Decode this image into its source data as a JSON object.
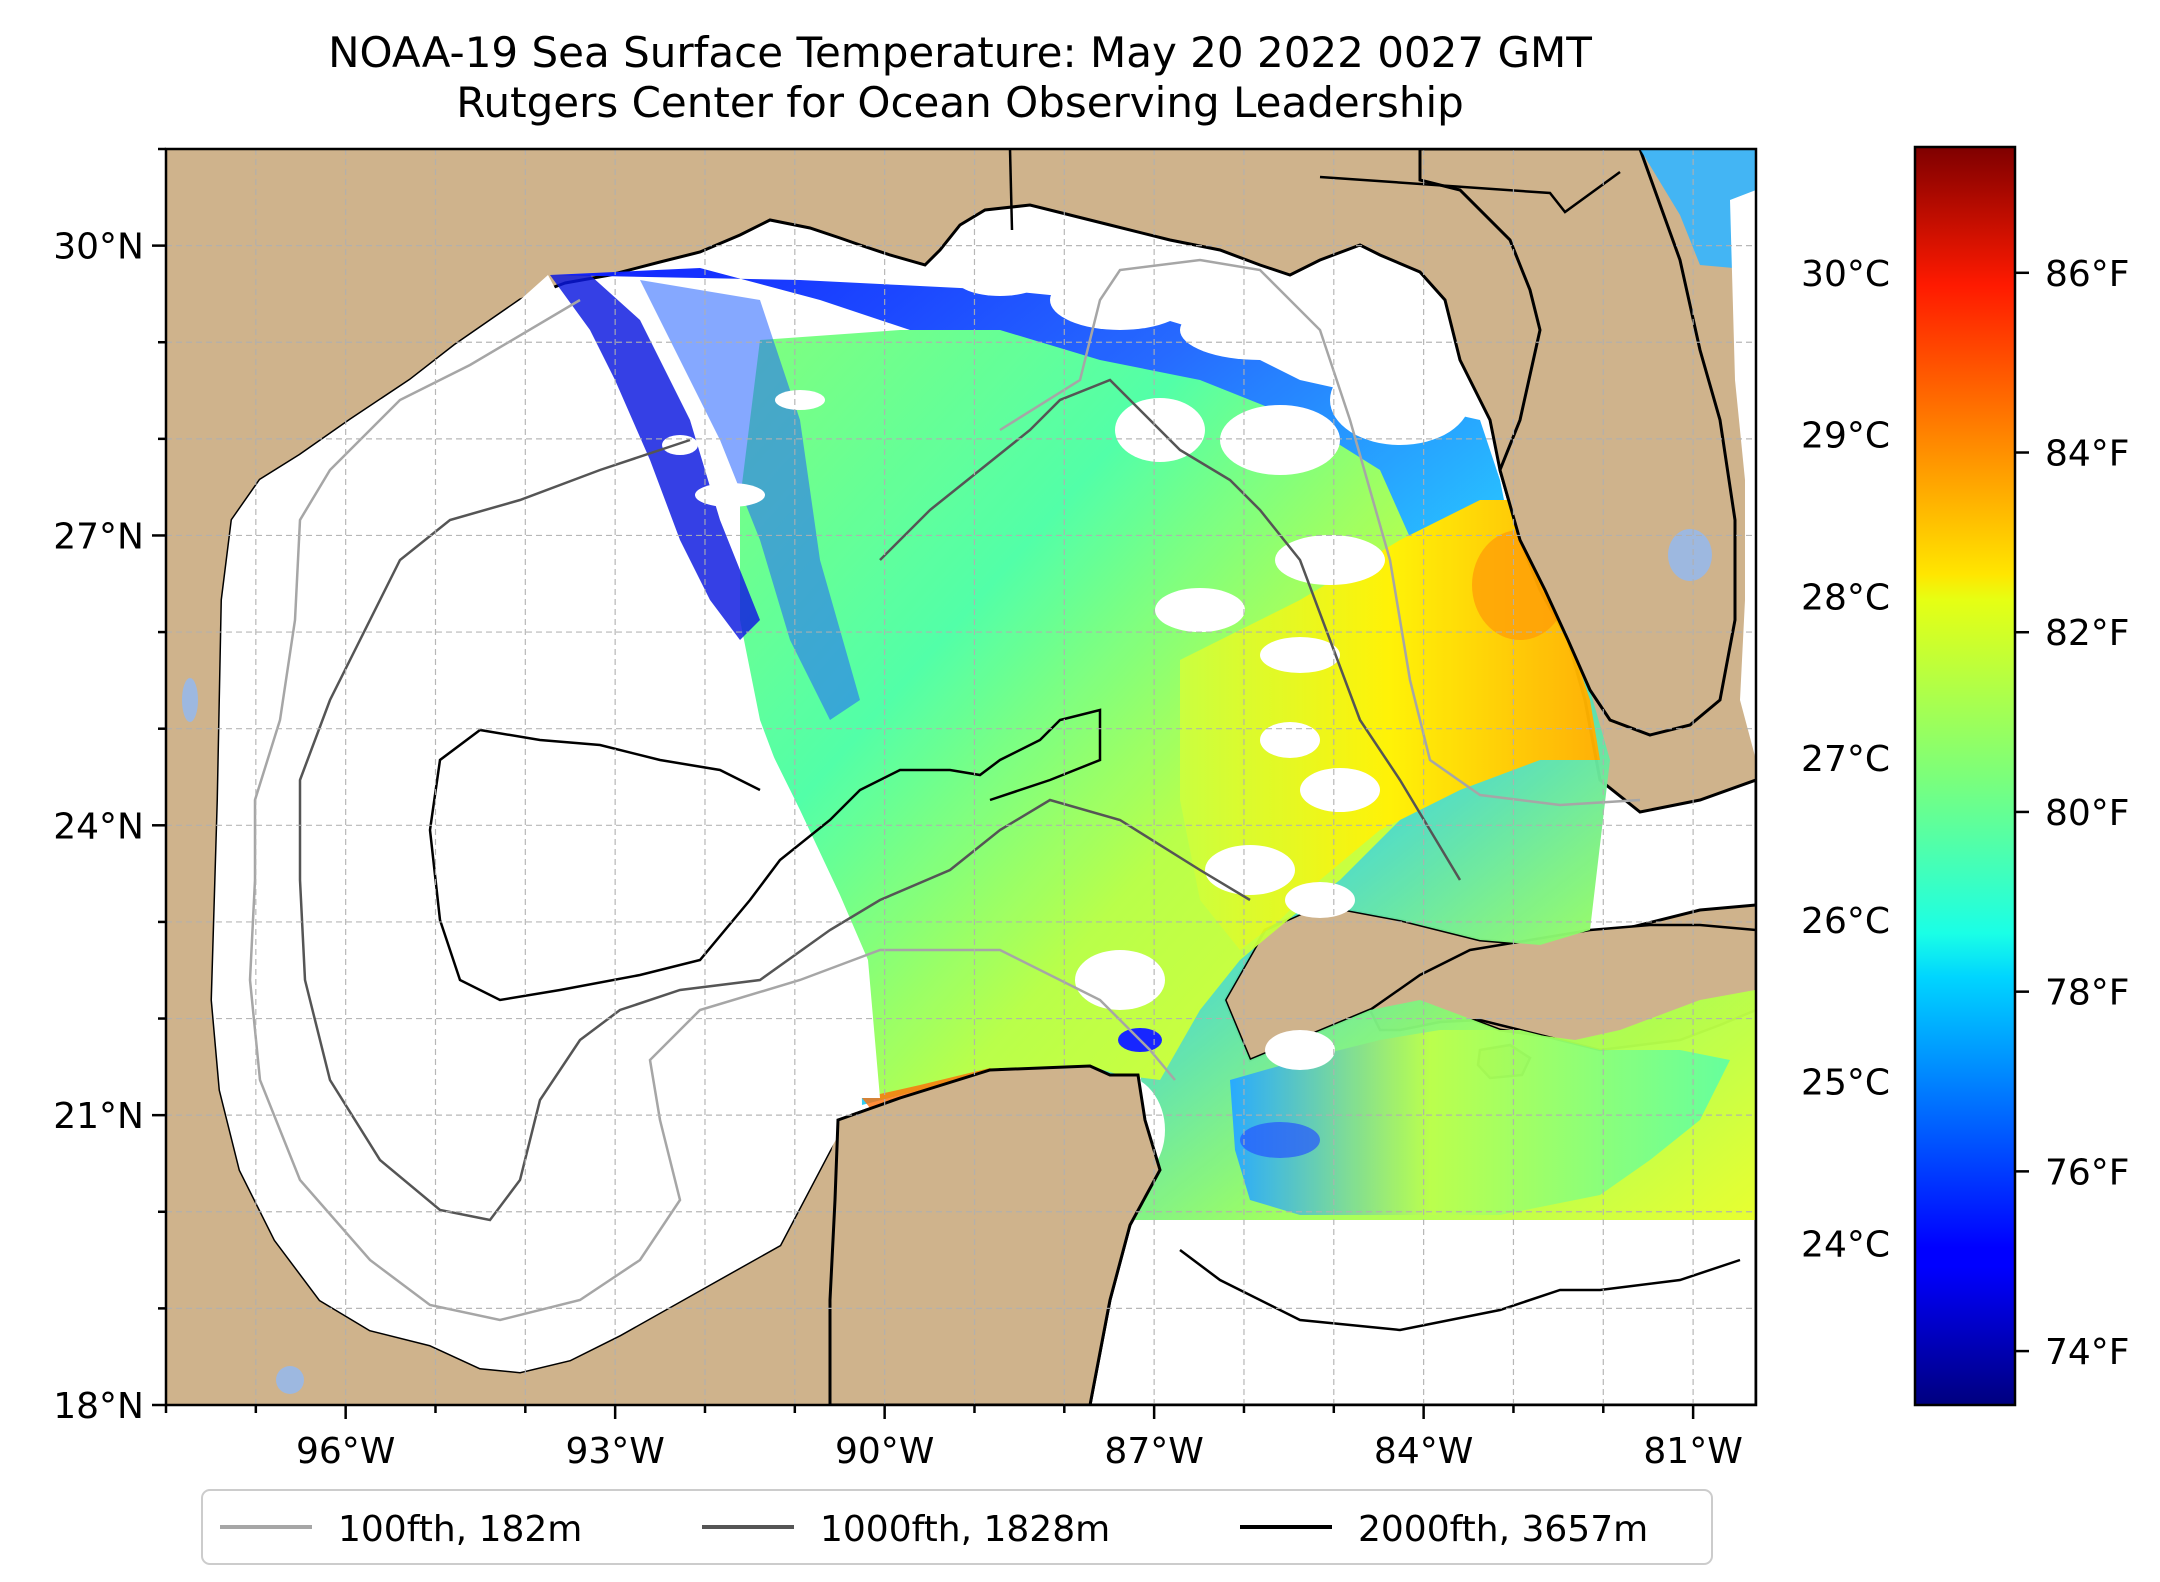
{
  "title": {
    "line1": "NOAA-19 Sea Surface Temperature: May 20 2022 0027 GMT",
    "line2": "Rutgers Center for Ocean Observing Leadership"
  },
  "map": {
    "lon_range": [
      -98.0,
      -80.3
    ],
    "lat_range": [
      18.0,
      31.0
    ],
    "lon_ticks": [
      {
        "value": -96,
        "label": "96°W"
      },
      {
        "value": -93,
        "label": "93°W"
      },
      {
        "value": -90,
        "label": "90°W"
      },
      {
        "value": -87,
        "label": "87°W"
      },
      {
        "value": -84,
        "label": "84°W"
      },
      {
        "value": -81,
        "label": "81°W"
      }
    ],
    "lat_ticks": [
      {
        "value": 30,
        "label": "30°N"
      },
      {
        "value": 27,
        "label": "27°N"
      },
      {
        "value": 24,
        "label": "24°N"
      },
      {
        "value": 21,
        "label": "21°N"
      },
      {
        "value": 18,
        "label": "18°N"
      }
    ],
    "grid": "dashed",
    "colors": {
      "land": "#cfb38c",
      "ocean_no_data": "#ffffff",
      "lakes": "#9db8e0",
      "coastline": "#000000"
    }
  },
  "colorbar": {
    "colormap": "jet",
    "range_f": [
      73.4,
      87.4
    ],
    "celsius_ticks": [
      {
        "value_c": 30,
        "label": "30°C"
      },
      {
        "value_c": 29,
        "label": "29°C"
      },
      {
        "value_c": 28,
        "label": "28°C"
      },
      {
        "value_c": 27,
        "label": "27°C"
      },
      {
        "value_c": 26,
        "label": "26°C"
      },
      {
        "value_c": 25,
        "label": "25°C"
      },
      {
        "value_c": 24,
        "label": "24°C"
      }
    ],
    "fahrenheit_ticks": [
      {
        "value_f": 86,
        "label": "86°F"
      },
      {
        "value_f": 84,
        "label": "84°F"
      },
      {
        "value_f": 82,
        "label": "82°F"
      },
      {
        "value_f": 80,
        "label": "80°F"
      },
      {
        "value_f": 78,
        "label": "78°F"
      },
      {
        "value_f": 76,
        "label": "76°F"
      },
      {
        "value_f": 74,
        "label": "74°F"
      }
    ]
  },
  "legend": {
    "placement": "bottom-center",
    "entries": [
      {
        "label": "100fth, 182m",
        "color": "#a6a6a6"
      },
      {
        "label": "1000fth, 1828m",
        "color": "#555555"
      },
      {
        "label": "2000fth, 3657m",
        "color": "#000000"
      }
    ]
  }
}
